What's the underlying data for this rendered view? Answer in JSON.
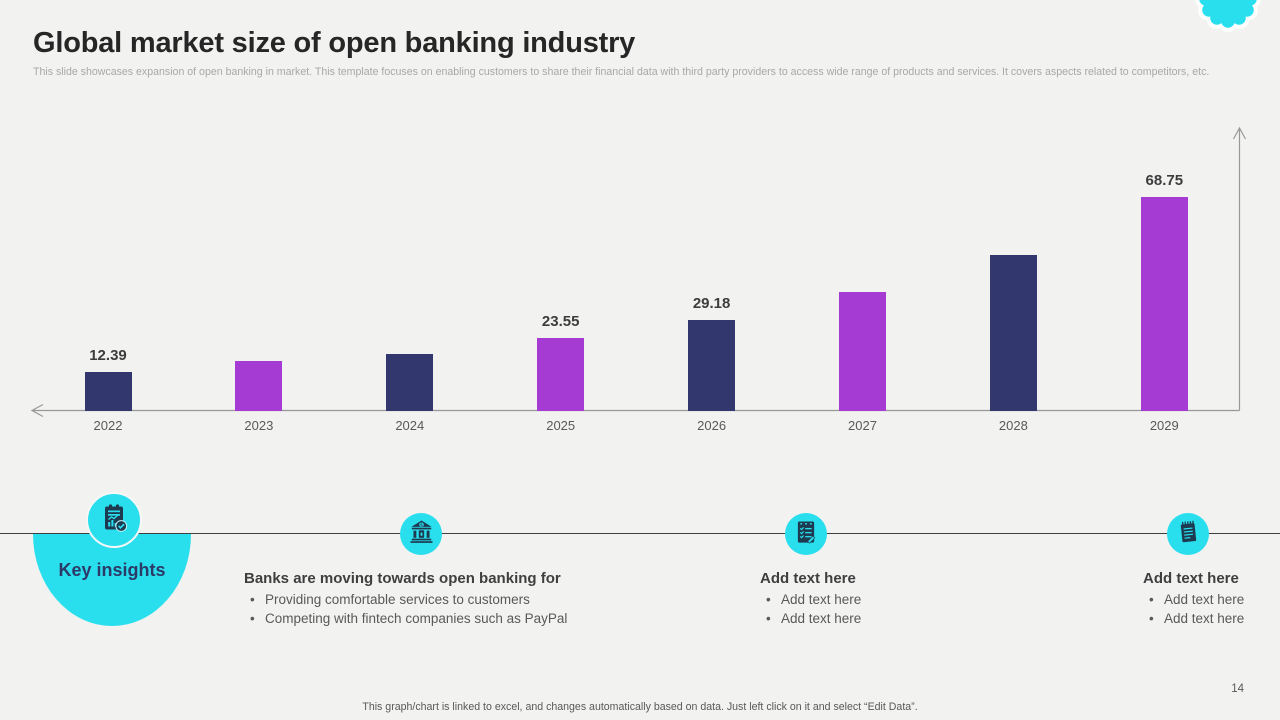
{
  "slide": {
    "title": "Global market size of open banking industry",
    "subtitle": "This slide showcases expansion of open banking in market. This template focuses on enabling customers to share their financial data with third party providers to access wide range of products and services. It covers aspects related to competitors, etc.",
    "footer_note": "This graph/chart is linked to excel, and changes automatically based on data. Just left click on it and select “Edit Data”.",
    "page_number": "14"
  },
  "colors": {
    "background": "#f2f2f1",
    "bar_navy": "#32376d",
    "bar_purple": "#a63bd4",
    "accent_cyan": "#29dfee",
    "icon_dark": "#1d3a50",
    "axis_gray": "#999999",
    "timeline_line": "#3f3f3f",
    "title_text": "#262626",
    "subtitle_text": "#a8a8a8",
    "body_text": "#595959",
    "heading_text": "#3f3f3f",
    "key_insights_text": "#2c3a68"
  },
  "chart_data": {
    "type": "bar",
    "title": "",
    "xlabel": "",
    "ylabel": "",
    "categories": [
      "2022",
      "2023",
      "2024",
      "2025",
      "2026",
      "2027",
      "2028",
      "2029"
    ],
    "values": [
      12.39,
      16.1,
      18.3,
      23.55,
      29.18,
      38.2,
      50.1,
      68.75
    ],
    "data_labels": [
      "12.39",
      null,
      null,
      "23.55",
      "29.18",
      null,
      null,
      "68.75"
    ],
    "bar_color_pattern": [
      "#32376d",
      "#a63bd4"
    ],
    "ylim": [
      0,
      91
    ],
    "grid": false,
    "legend": "none",
    "axis_arrows": true,
    "note": "values without data_labels are estimated from bar heights"
  },
  "timeline": {
    "key_insights_label": "Key insights",
    "insight_icon": "bar-chart-report-icon",
    "columns": [
      {
        "icon": "bank-icon",
        "heading": "Banks are moving towards open banking for",
        "bullets": [
          "Providing comfortable services to customers",
          "Competing with fintech companies such as PayPal"
        ]
      },
      {
        "icon": "checklist-icon",
        "heading": "Add text here",
        "bullets": [
          "Add text here",
          "Add text here"
        ]
      },
      {
        "icon": "notepad-icon",
        "heading": "Add text here",
        "bullets": [
          "Add text here",
          "Add text here"
        ]
      }
    ]
  }
}
